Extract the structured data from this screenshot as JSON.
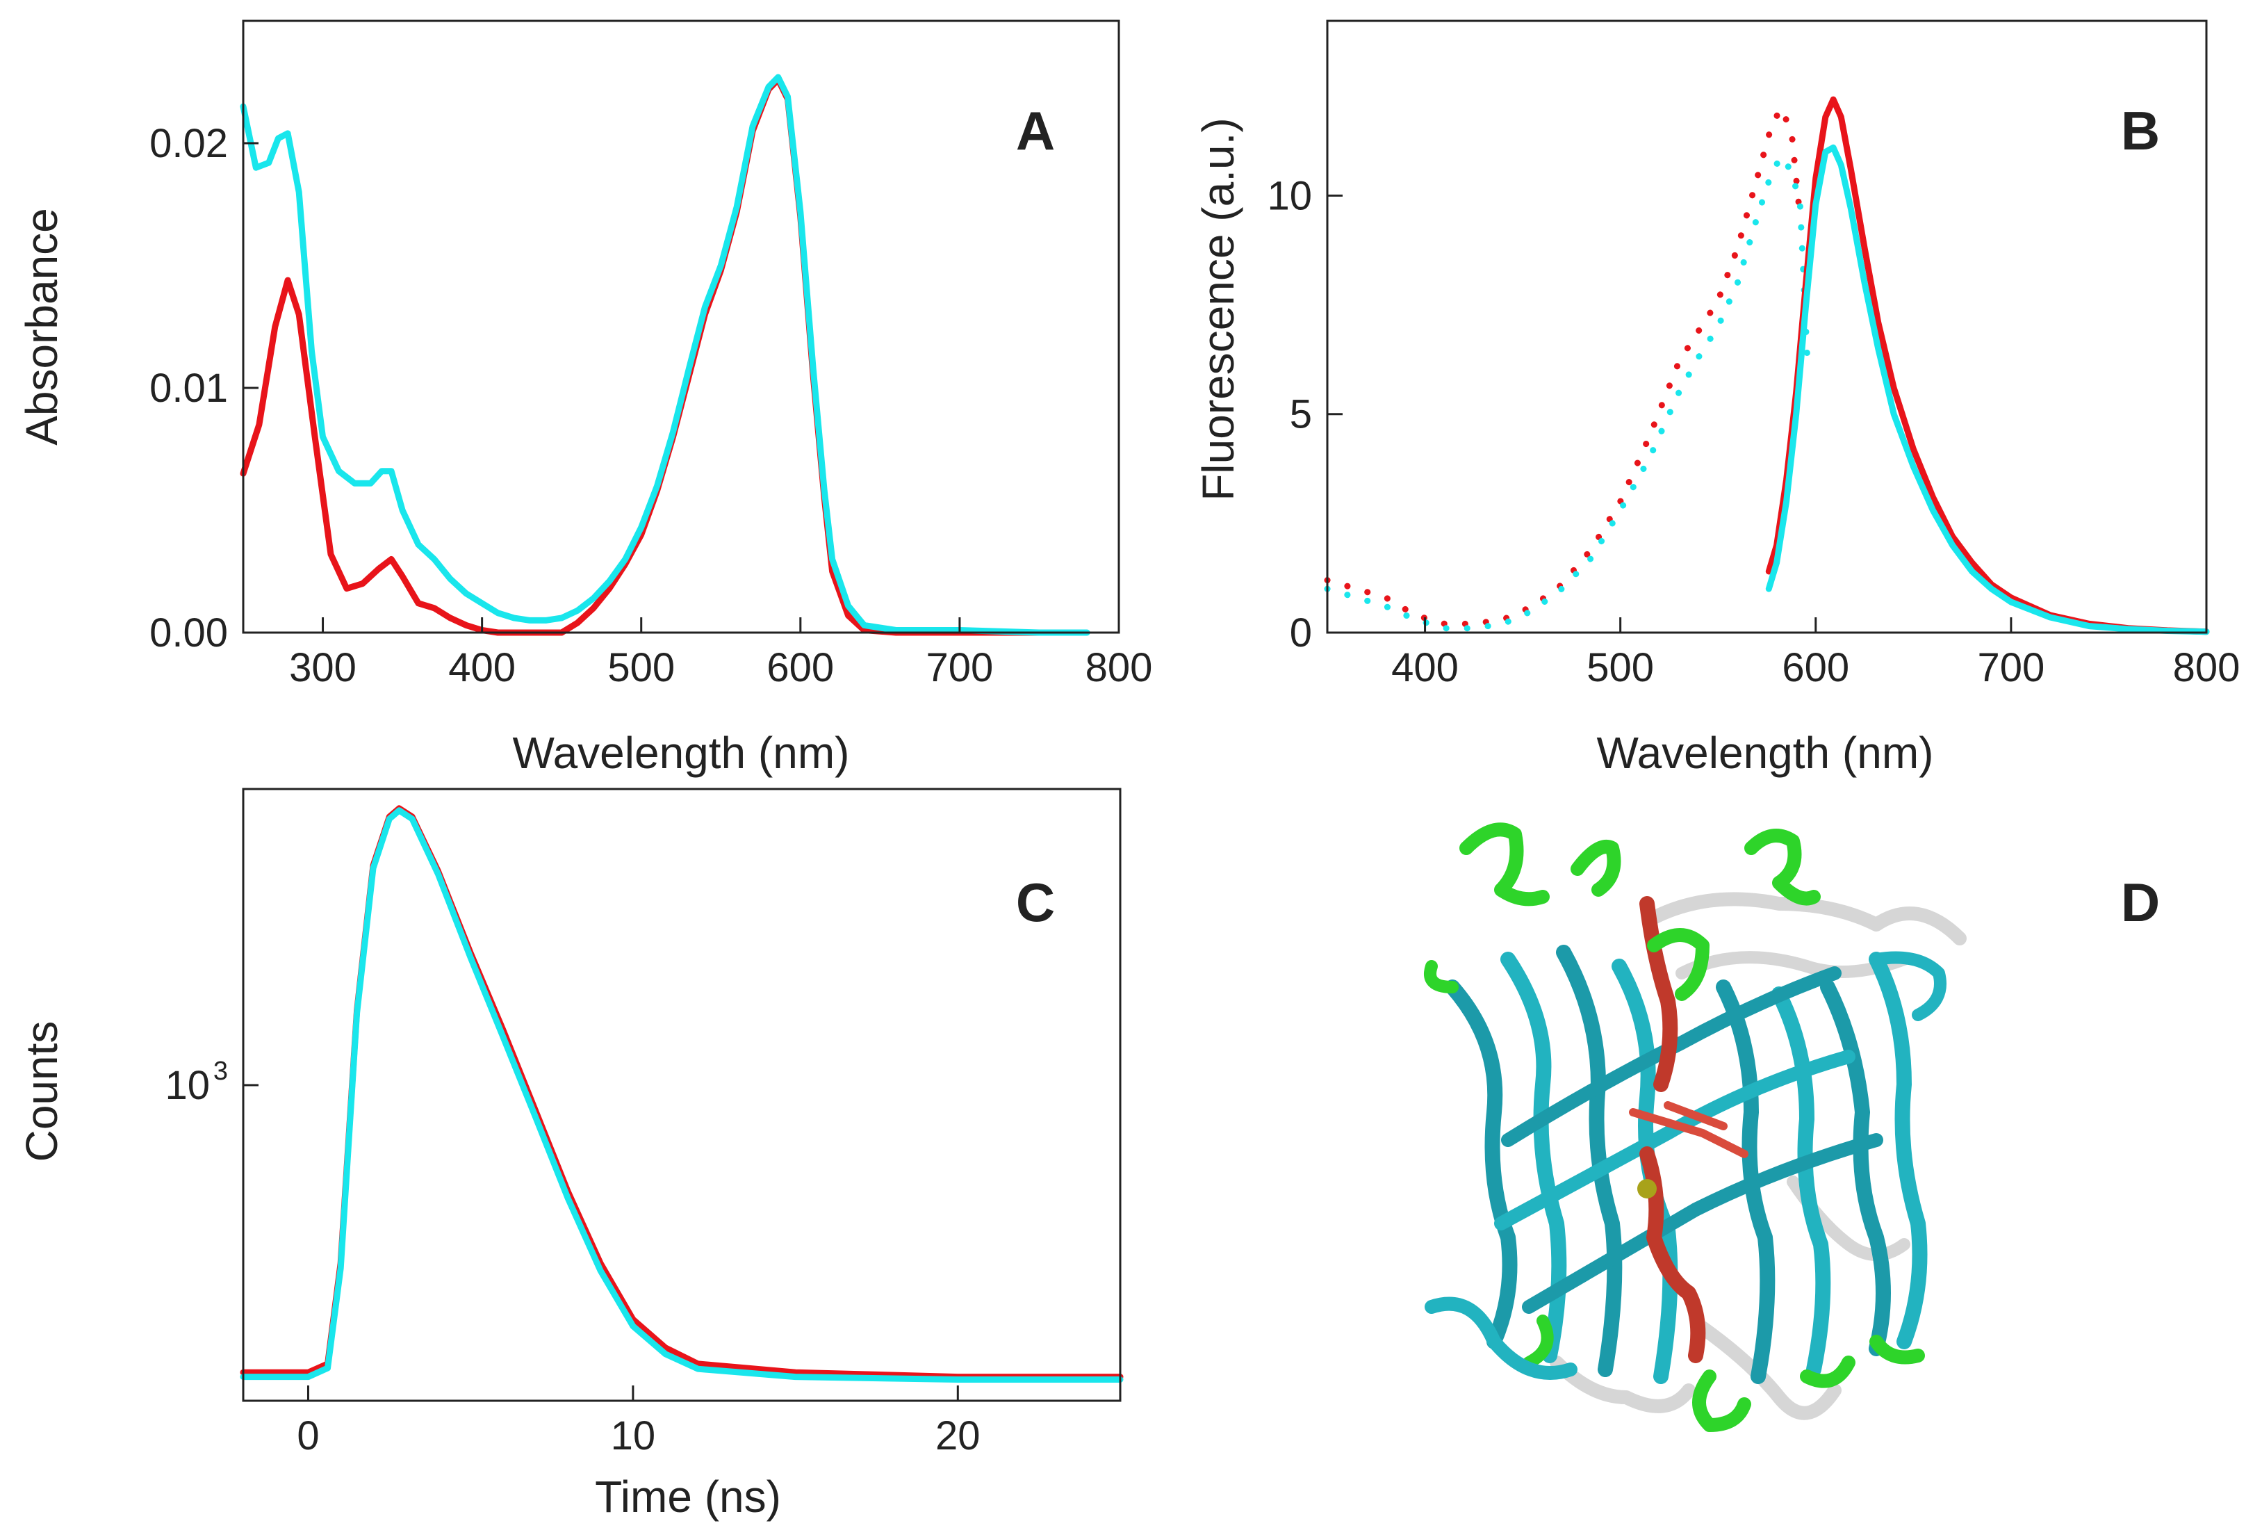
{
  "colors": {
    "red": "#e8141a",
    "cyan": "#19e6ec",
    "green": "#2ed42a",
    "teal": "#1c9aa9",
    "white_tube": "#d8d8d8",
    "dark_red": "#c0392b"
  },
  "chart_data": [
    {
      "panel": "A",
      "type": "line",
      "xlabel": "Wavelength (nm)",
      "ylabel": "Absorbance",
      "xlim": [
        250,
        800
      ],
      "ylim": [
        0.0,
        0.025
      ],
      "xticks": [
        300,
        400,
        500,
        600,
        700,
        800
      ],
      "yticks": [
        0.0,
        0.01,
        0.02
      ],
      "ytick_labels": [
        "0.00",
        "0.01",
        "0.02"
      ],
      "series": [
        {
          "name": "red",
          "color": "#e8141a",
          "x": [
            250,
            260,
            270,
            278,
            285,
            295,
            305,
            315,
            325,
            335,
            343,
            350,
            360,
            370,
            380,
            390,
            400,
            410,
            420,
            430,
            440,
            450,
            460,
            470,
            480,
            490,
            500,
            510,
            520,
            530,
            540,
            550,
            560,
            570,
            580,
            586,
            592,
            600,
            608,
            615,
            620,
            630,
            640,
            660,
            700,
            750
          ],
          "y": [
            0.0065,
            0.0085,
            0.0125,
            0.0144,
            0.013,
            0.008,
            0.0032,
            0.0018,
            0.002,
            0.0026,
            0.003,
            0.0023,
            0.0012,
            0.001,
            0.0006,
            0.0003,
            0.0001,
            0.0,
            0.0,
            0.0,
            0.0,
            0.0,
            0.0004,
            0.001,
            0.0018,
            0.0028,
            0.004,
            0.0058,
            0.008,
            0.0105,
            0.013,
            0.0148,
            0.0172,
            0.0205,
            0.0222,
            0.0226,
            0.0218,
            0.017,
            0.0105,
            0.0055,
            0.0025,
            0.0007,
            0.0001,
            0.0,
            0.0,
            0.0
          ]
        },
        {
          "name": "cyan",
          "color": "#19e6ec",
          "x": [
            250,
            258,
            266,
            272,
            278,
            285,
            293,
            300,
            310,
            320,
            330,
            337,
            343,
            350,
            360,
            370,
            380,
            390,
            400,
            410,
            420,
            430,
            440,
            450,
            460,
            470,
            480,
            490,
            500,
            510,
            520,
            530,
            540,
            550,
            560,
            570,
            580,
            586,
            592,
            600,
            608,
            615,
            620,
            630,
            640,
            660,
            700,
            750,
            780
          ],
          "y": [
            0.0215,
            0.019,
            0.0192,
            0.0202,
            0.0204,
            0.018,
            0.0115,
            0.008,
            0.0066,
            0.0061,
            0.0061,
            0.0066,
            0.0066,
            0.005,
            0.0036,
            0.003,
            0.0022,
            0.0016,
            0.0012,
            0.0008,
            0.0006,
            0.0005,
            0.0005,
            0.0006,
            0.0009,
            0.0014,
            0.0021,
            0.003,
            0.0043,
            0.006,
            0.0082,
            0.0108,
            0.0133,
            0.015,
            0.0174,
            0.0207,
            0.0223,
            0.0227,
            0.0219,
            0.0172,
            0.0108,
            0.0058,
            0.003,
            0.0011,
            0.0003,
            0.0001,
            0.0001,
            0.0,
            0.0
          ]
        }
      ]
    },
    {
      "panel": "B",
      "type": "line",
      "xlabel": "Wavelength (nm)",
      "ylabel": "Fluorescence (a.u.)",
      "xlim": [
        350,
        800
      ],
      "ylim": [
        0,
        14
      ],
      "xticks": [
        400,
        500,
        600,
        700,
        800
      ],
      "yticks": [
        0,
        5,
        10
      ],
      "series": [
        {
          "name": "red excitation (dotted)",
          "color": "#e8141a",
          "style": "dotted",
          "x": [
            350,
            365,
            380,
            395,
            410,
            425,
            440,
            455,
            470,
            485,
            500,
            515,
            530,
            540,
            550,
            560,
            570,
            578,
            583,
            588,
            592
          ],
          "y": [
            1.2,
            1.0,
            0.8,
            0.4,
            0.2,
            0.2,
            0.3,
            0.6,
            1.1,
            1.9,
            3.0,
            4.5,
            6.2,
            6.9,
            7.6,
            8.8,
            10.4,
            11.7,
            12.0,
            11.3,
            9.5
          ]
        },
        {
          "name": "cyan excitation (dotted)",
          "color": "#19e6ec",
          "style": "dotted",
          "x": [
            350,
            365,
            380,
            395,
            410,
            425,
            440,
            455,
            470,
            485,
            500,
            515,
            530,
            540,
            550,
            560,
            570,
            578,
            583,
            588,
            592,
            596
          ],
          "y": [
            1.0,
            0.8,
            0.6,
            0.3,
            0.1,
            0.1,
            0.2,
            0.5,
            1.0,
            1.7,
            2.8,
            4.0,
            5.5,
            6.3,
            7.0,
            8.0,
            9.5,
            10.6,
            10.9,
            10.5,
            9.8,
            6.0
          ]
        },
        {
          "name": "red emission",
          "color": "#e8141a",
          "style": "solid",
          "x": [
            576,
            580,
            585,
            590,
            595,
            600,
            605,
            609,
            613,
            618,
            625,
            632,
            640,
            650,
            660,
            670,
            680,
            690,
            700,
            720,
            740,
            760,
            780,
            800
          ],
          "y": [
            1.4,
            2.0,
            3.5,
            5.5,
            8.0,
            10.4,
            11.8,
            12.2,
            11.8,
            10.6,
            8.8,
            7.1,
            5.6,
            4.2,
            3.1,
            2.2,
            1.6,
            1.1,
            0.8,
            0.4,
            0.2,
            0.1,
            0.05,
            0.02
          ]
        },
        {
          "name": "cyan emission",
          "color": "#19e6ec",
          "style": "solid",
          "x": [
            576,
            580,
            585,
            590,
            595,
            600,
            605,
            609,
            613,
            618,
            625,
            632,
            640,
            650,
            660,
            670,
            680,
            690,
            700,
            720,
            740,
            760,
            780,
            800
          ],
          "y": [
            1.0,
            1.6,
            3.0,
            5.0,
            7.5,
            9.8,
            11.0,
            11.1,
            10.7,
            9.7,
            8.0,
            6.5,
            5.0,
            3.8,
            2.8,
            2.0,
            1.4,
            1.0,
            0.7,
            0.35,
            0.15,
            0.08,
            0.04,
            0.02
          ]
        }
      ]
    },
    {
      "panel": "C",
      "type": "line",
      "xlabel": "Time (ns)",
      "ylabel": "Counts",
      "yscale": "log",
      "xlim": [
        -2,
        25
      ],
      "ylim": [
        180,
        5000
      ],
      "xticks": [
        0,
        10,
        20
      ],
      "yticks": [
        1000
      ],
      "ytick_labels": [
        "10"
      ],
      "ytick_exponent": "3",
      "series": [
        {
          "name": "red",
          "color": "#e8141a",
          "x": [
            -2,
            0,
            0.6,
            1,
            1.5,
            2,
            2.5,
            2.8,
            3.2,
            4,
            5,
            6,
            7,
            8,
            9,
            10,
            11,
            12,
            15,
            20,
            25
          ],
          "y": [
            210,
            210,
            220,
            380,
            1500,
            3300,
            4300,
            4500,
            4300,
            3200,
            2050,
            1350,
            870,
            560,
            380,
            280,
            240,
            220,
            210,
            205,
            205
          ]
        },
        {
          "name": "cyan",
          "color": "#19e6ec",
          "x": [
            -2,
            0,
            0.6,
            1,
            1.5,
            2,
            2.5,
            2.8,
            3.2,
            4,
            5,
            6,
            7,
            8,
            9,
            10,
            11,
            12,
            15,
            20,
            25
          ],
          "y": [
            205,
            205,
            215,
            370,
            1480,
            3250,
            4250,
            4450,
            4250,
            3150,
            2000,
            1300,
            840,
            540,
            365,
            270,
            232,
            214,
            205,
            202,
            202
          ]
        }
      ]
    }
  ],
  "panel_d": {
    "letter": "D"
  }
}
